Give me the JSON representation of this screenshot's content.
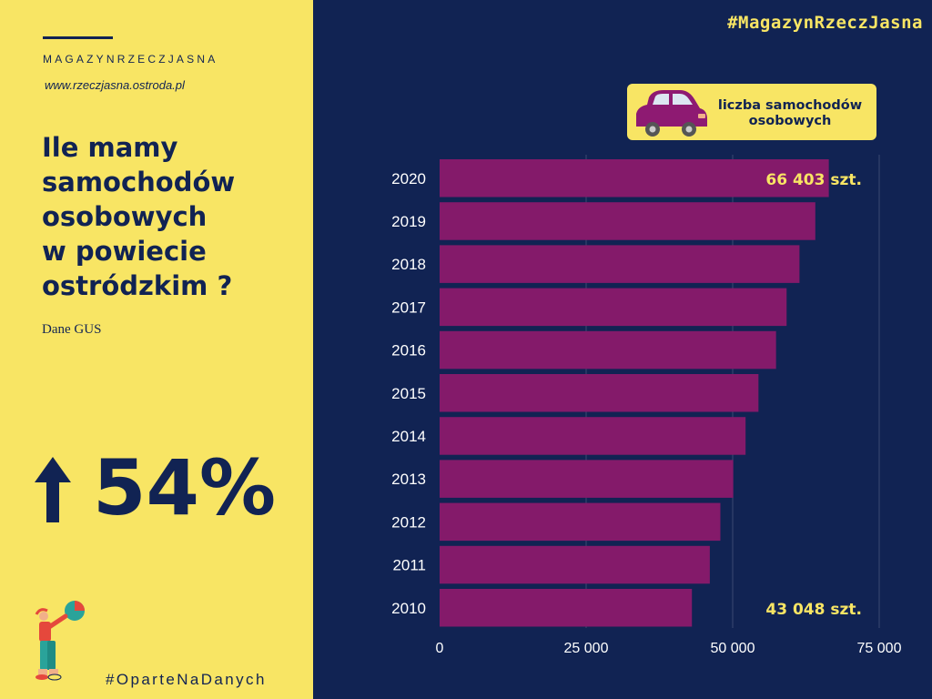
{
  "brand": {
    "name": "MAGAZYNRZECZJASNA",
    "url": "www.rzeczjasna.ostroda.pl",
    "hashtag_top": "#MagazynRzeczJasna",
    "hashtag_bottom": "#OparteNaDanych"
  },
  "headline": {
    "lines": [
      "Ile mamy",
      "samochodów",
      "osobowych",
      "w powiecie",
      "ostródzkim ?"
    ]
  },
  "source": "Dane GUS",
  "growth": {
    "value": "54%",
    "direction_icon": "arrow-up-icon"
  },
  "legend": {
    "label_line1": "liczba samochodów",
    "label_line2": "osobowych",
    "icon": "car-icon"
  },
  "colors": {
    "background": "#112353",
    "accent_yellow": "#f8e564",
    "bar": "#841a6a",
    "car": "#8e1a72"
  },
  "chart_data": {
    "type": "bar",
    "orientation": "horizontal",
    "categories": [
      "2020",
      "2019",
      "2018",
      "2017",
      "2016",
      "2015",
      "2014",
      "2013",
      "2012",
      "2011",
      "2010"
    ],
    "values": [
      66403,
      64100,
      61400,
      59200,
      57400,
      54400,
      52200,
      50100,
      47900,
      46100,
      43048
    ],
    "xlim": [
      0,
      75000
    ],
    "xticks": [
      0,
      25000,
      50000,
      75000
    ],
    "xtick_labels": [
      "0",
      "25 000",
      "50 000",
      "75 000"
    ],
    "grid": "vertical",
    "annotations": [
      {
        "category": "2020",
        "number": "66 403",
        "unit": "szt."
      },
      {
        "category": "2010",
        "number": "43 048",
        "unit": "szt."
      }
    ]
  }
}
